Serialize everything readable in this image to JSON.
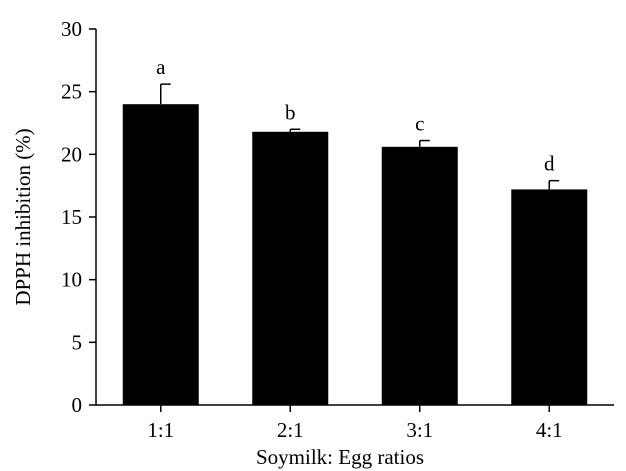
{
  "chart_data": {
    "type": "bar",
    "categories": [
      "1:1",
      "2:1",
      "3:1",
      "4:1"
    ],
    "values": [
      24.0,
      21.8,
      20.6,
      17.2
    ],
    "errors": [
      1.6,
      0.2,
      0.5,
      0.7
    ],
    "significance_labels": [
      "a",
      "b",
      "c",
      "d"
    ],
    "xlabel": "Soymilk: Egg ratios",
    "ylabel": "DPPH inhibition (%)",
    "ylim": [
      0,
      30
    ],
    "yticks": [
      0,
      5,
      10,
      15,
      20,
      25,
      30
    ],
    "grid": false,
    "colors": {
      "bar": "#000000",
      "axis": "#000000",
      "background": "#ffffff"
    }
  }
}
